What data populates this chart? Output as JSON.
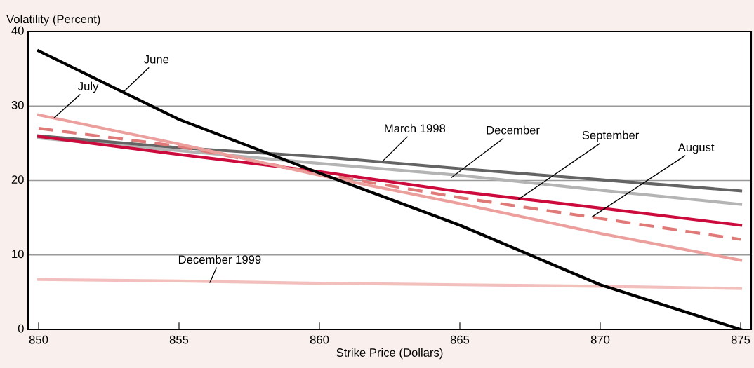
{
  "chart_data": {
    "type": "line",
    "xlabel": "Strike Price (Dollars)",
    "ylabel": "Volatility (Percent)",
    "x": [
      850,
      855,
      860,
      865,
      870,
      875
    ],
    "series": [
      {
        "color": "#000000",
        "values": [
          37.4,
          28.2,
          21.0,
          14.0,
          6.0,
          0
        ]
      },
      {
        "color": "#eba09e",
        "values": [
          28.8,
          24.9,
          20.7,
          16.9,
          12.9,
          9.3
        ]
      },
      {
        "color": "#e07a78",
        "line_style": "dashed",
        "values": [
          27.0,
          24.6,
          20.9,
          17.7,
          14.9,
          12.1
        ]
      },
      {
        "color": "#cc0a3c",
        "values": [
          25.9,
          23.5,
          21.2,
          18.5,
          16.3,
          14.0
        ]
      },
      {
        "color": "#646464",
        "values": [
          26.0,
          24.4,
          23.2,
          21.6,
          20.1,
          18.6
        ]
      },
      {
        "color": "#b4b4b4",
        "values": [
          25.7,
          24.0,
          22.3,
          20.7,
          18.7,
          16.8
        ]
      },
      {
        "color": "#f2bfbd",
        "values": [
          6.7,
          6.5,
          6.2,
          6.0,
          5.8,
          5.5
        ]
      }
    ],
    "annotations": [
      {
        "text": "June",
        "x": 853.05,
        "y": 32.0
      },
      {
        "text": "July",
        "x": 850.55,
        "y": 28.4
      },
      {
        "text": "March 1998",
        "x": 862.25,
        "y": 22.6
      },
      {
        "text": "December",
        "x": 864.7,
        "y": 20.4
      },
      {
        "text": "September",
        "x": 867.1,
        "y": 17.5
      },
      {
        "text": "August",
        "x": 869.7,
        "y": 15.1
      },
      {
        "text": "December 1999",
        "x": 856.1,
        "y": 6.3
      }
    ],
    "xlim": [
      849.625,
      875.375
    ],
    "ylim": [
      0,
      40
    ],
    "xticks": [
      850,
      855,
      860,
      865,
      870,
      875
    ],
    "yticks": [
      0,
      10,
      20,
      30,
      40
    ],
    "grid": "y"
  }
}
